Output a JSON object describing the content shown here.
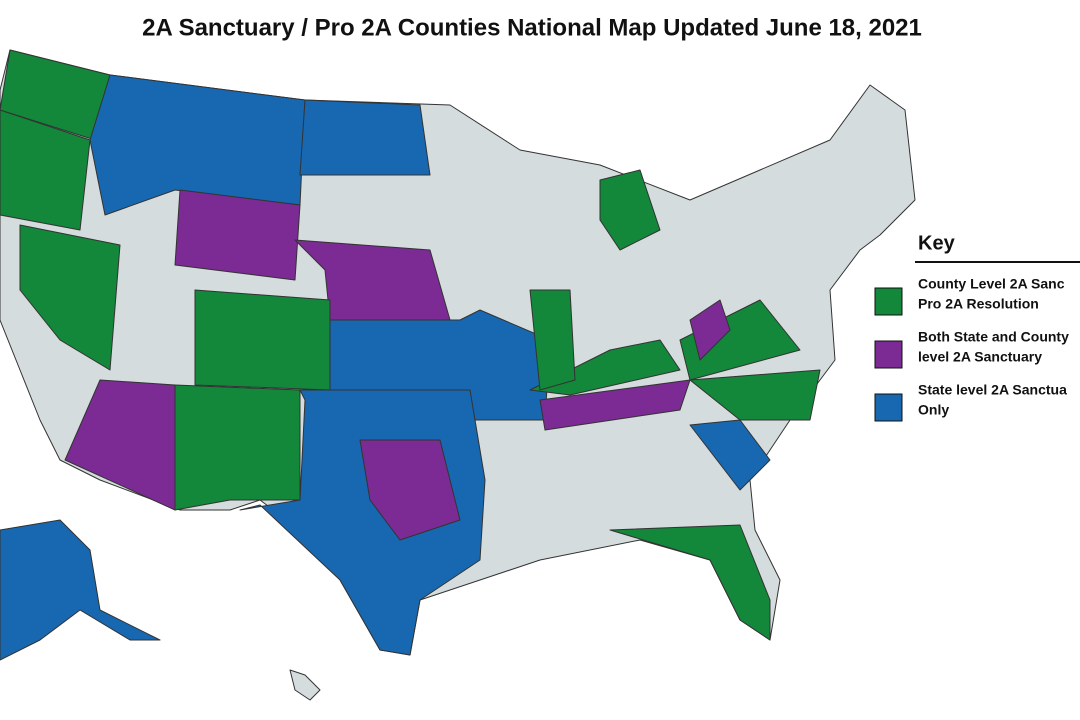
{
  "title": "2A Sanctuary / Pro 2A Counties National Map Updated June 18, 2021",
  "key": {
    "title": "Key",
    "items": [
      {
        "lines": [
          "County Level 2A Sanc",
          "Pro 2A Resolution"
        ],
        "color": "#13873a"
      },
      {
        "lines": [
          "Both State and County",
          "level 2A Sanctuary"
        ],
        "color": "#7b2b93"
      },
      {
        "lines": [
          "State level 2A Sanctua",
          "Only"
        ],
        "color": "#1768b0"
      }
    ]
  }
}
